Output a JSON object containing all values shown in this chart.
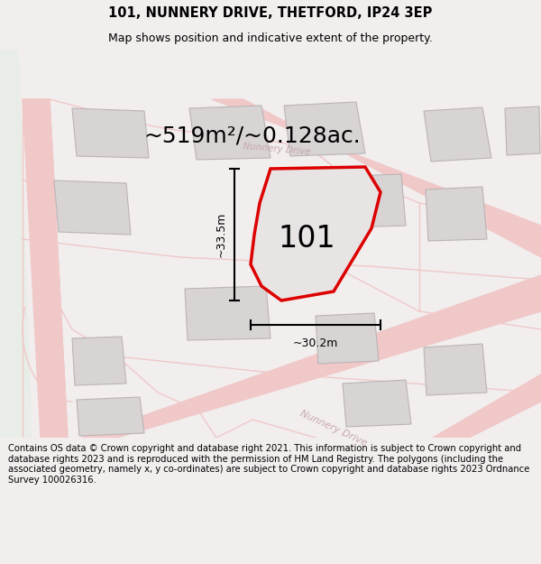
{
  "title_line1": "101, NUNNERY DRIVE, THETFORD, IP24 3EP",
  "title_line2": "Map shows position and indicative extent of the property.",
  "area_label": "~519m²/~0.128ac.",
  "house_number": "101",
  "dim_width": "~30.2m",
  "dim_height": "~33.5m",
  "road_label_top": "Nunnery Drive",
  "road_label_bottom": "Nunnery Drive",
  "footer": "Contains OS data © Crown copyright and database right 2021. This information is subject to Crown copyright and database rights 2023 and is reproduced with the permission of HM Land Registry. The polygons (including the associated geometry, namely x, y co-ordinates) are subject to Crown copyright and database rights 2023 Ordnance Survey 100026316.",
  "bg_color": "#f2eeee",
  "map_bg": "#f5f0f0",
  "plot_fill": "#e8e4e4",
  "road_color": "#f0c8c8",
  "building_color": "#d8d4d4",
  "highlight_color": "#dd0000",
  "green_color": "#e8ede8",
  "title_fontsize": 10.5,
  "subtitle_fontsize": 9,
  "footer_fontsize": 7.2,
  "area_fontsize": 18,
  "housenumber_fontsize": 24
}
